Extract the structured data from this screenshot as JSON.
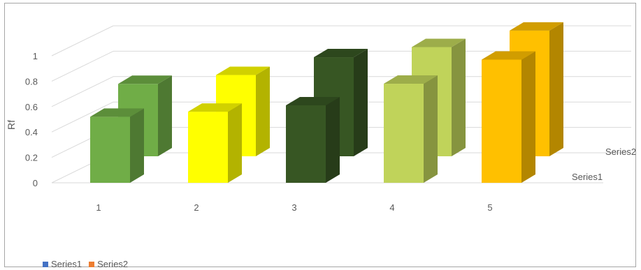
{
  "chart_data": {
    "type": "bar",
    "style": "3d-clustered-column",
    "title": "",
    "xlabel": "",
    "ylabel": "Rf",
    "ylim": [
      0,
      1
    ],
    "yticks": [
      "0",
      "0.2",
      "0.4",
      "0.6",
      "0.8",
      "1"
    ],
    "categories": [
      "1",
      "2",
      "3",
      "4",
      "5"
    ],
    "series": [
      {
        "name": "Series1",
        "values": [
          0.52,
          0.56,
          0.61,
          0.78,
          0.97
        ],
        "legend_color": "#4472c4"
      },
      {
        "name": "Series2",
        "values": [
          0.57,
          0.64,
          0.78,
          0.86,
          0.99
        ],
        "legend_color": "#ed7d31"
      }
    ],
    "category_colors": [
      "#70ad47",
      "#ffff00",
      "#375623",
      "#c0d35a",
      "#ffc000"
    ],
    "depth_axis_labels": [
      "Series1",
      "Series2"
    ],
    "legend_position": "bottom-left",
    "grid": true
  }
}
